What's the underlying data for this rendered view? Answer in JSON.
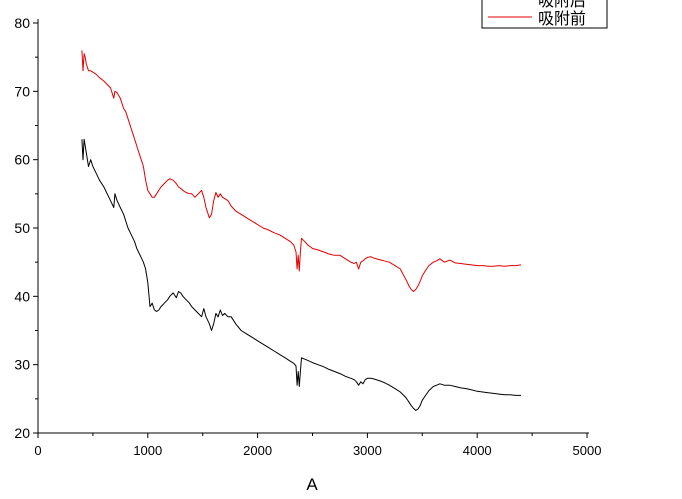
{
  "chart_data": {
    "type": "line",
    "title": "",
    "xlabel": "A",
    "ylabel": "",
    "xlim": [
      0,
      5000
    ],
    "ylim": [
      20,
      80
    ],
    "x_ticks": [
      "0",
      "1000",
      "2000",
      "3000",
      "4000",
      "5000"
    ],
    "y_ticks": [
      "20",
      "30",
      "40",
      "50",
      "60",
      "70",
      "80"
    ],
    "grid": false,
    "legend": {
      "position": "top-right",
      "entries": [
        "吸附后",
        "吸附前"
      ]
    },
    "series": [
      {
        "name": "吸附后",
        "color": "#000000",
        "x": [
          400,
          410,
          420,
          430,
          440,
          460,
          480,
          500,
          530,
          560,
          600,
          630,
          660,
          690,
          700,
          720,
          750,
          780,
          800,
          820,
          850,
          880,
          900,
          930,
          960,
          980,
          1000,
          1020,
          1040,
          1060,
          1080,
          1100,
          1120,
          1150,
          1180,
          1200,
          1230,
          1260,
          1280,
          1300,
          1320,
          1350,
          1380,
          1400,
          1430,
          1460,
          1490,
          1510,
          1530,
          1560,
          1580,
          1600,
          1620,
          1640,
          1660,
          1680,
          1700,
          1730,
          1760,
          1800,
          1850,
          1900,
          1950,
          2000,
          2050,
          2100,
          2150,
          2200,
          2250,
          2300,
          2330,
          2350,
          2360,
          2370,
          2380,
          2390,
          2400,
          2430,
          2460,
          2500,
          2550,
          2600,
          2650,
          2700,
          2750,
          2800,
          2850,
          2880,
          2900,
          2920,
          2940,
          2960,
          2980,
          3000,
          3030,
          3060,
          3100,
          3150,
          3200,
          3250,
          3300,
          3350,
          3380,
          3400,
          3420,
          3440,
          3460,
          3480,
          3500,
          3530,
          3560,
          3600,
          3630,
          3660,
          3700,
          3750,
          3800,
          3850,
          3900,
          3950,
          4000,
          4050,
          4100,
          4150,
          4200,
          4250,
          4300,
          4350,
          4400
        ],
        "y": [
          63,
          60,
          63,
          62,
          61,
          59,
          60,
          59,
          58,
          57,
          56,
          55,
          54,
          53,
          55,
          54,
          53,
          52,
          51,
          50,
          49,
          48,
          47,
          46,
          45,
          44,
          42,
          38.5,
          39,
          38,
          37.8,
          38,
          38.5,
          39,
          39.5,
          40,
          40.5,
          39.8,
          40.7,
          40.5,
          40,
          39.5,
          39,
          38.5,
          38,
          37.5,
          37,
          38.2,
          37,
          36,
          35,
          36,
          37.5,
          37,
          38,
          37.2,
          37.5,
          37,
          37,
          36,
          35,
          34.5,
          34,
          33.5,
          33,
          32.5,
          32,
          31.5,
          31,
          30.5,
          30.2,
          29.8,
          27,
          29,
          26.8,
          29,
          31,
          30.8,
          30.6,
          30.3,
          30,
          29.7,
          29.3,
          29,
          28.7,
          28.3,
          28,
          27.8,
          27.5,
          27,
          27.5,
          27.2,
          27.8,
          28,
          28,
          27.9,
          27.7,
          27.4,
          27,
          26.5,
          26,
          25.2,
          24.5,
          24,
          23.6,
          23.3,
          23.5,
          24,
          24.8,
          25.5,
          26.2,
          26.8,
          27,
          27.2,
          27,
          27,
          26.8,
          26.6,
          26.5,
          26.3,
          26.1,
          26,
          25.9,
          25.8,
          25.7,
          25.6,
          25.6,
          25.5,
          25.5
        ]
      },
      {
        "name": "吸附前",
        "color": "#e00000",
        "x": [
          400,
          410,
          420,
          430,
          440,
          460,
          480,
          500,
          530,
          560,
          600,
          630,
          660,
          690,
          700,
          720,
          750,
          780,
          800,
          820,
          850,
          880,
          900,
          930,
          960,
          980,
          1000,
          1020,
          1040,
          1060,
          1080,
          1100,
          1120,
          1150,
          1180,
          1200,
          1230,
          1260,
          1280,
          1300,
          1320,
          1350,
          1380,
          1400,
          1430,
          1460,
          1490,
          1510,
          1530,
          1560,
          1580,
          1600,
          1620,
          1640,
          1660,
          1680,
          1700,
          1730,
          1760,
          1800,
          1850,
          1900,
          1950,
          2000,
          2050,
          2100,
          2150,
          2200,
          2250,
          2300,
          2330,
          2350,
          2360,
          2370,
          2380,
          2390,
          2400,
          2430,
          2460,
          2500,
          2550,
          2600,
          2650,
          2700,
          2750,
          2800,
          2850,
          2880,
          2900,
          2920,
          2940,
          2960,
          2980,
          3000,
          3030,
          3060,
          3100,
          3150,
          3200,
          3250,
          3300,
          3350,
          3380,
          3400,
          3420,
          3440,
          3460,
          3480,
          3500,
          3530,
          3560,
          3600,
          3630,
          3660,
          3700,
          3750,
          3800,
          3850,
          3900,
          3950,
          4000,
          4050,
          4100,
          4150,
          4200,
          4250,
          4300,
          4350,
          4400
        ],
        "y": [
          76,
          73,
          75.5,
          75,
          74,
          73,
          73,
          72.8,
          72.5,
          72,
          71.5,
          71,
          70.5,
          69,
          70,
          69.8,
          69,
          67.5,
          67,
          66,
          64.5,
          63,
          62,
          60.5,
          59,
          57,
          55.5,
          55,
          54.5,
          54.5,
          55,
          55.5,
          56,
          56.5,
          57,
          57.2,
          57,
          56.5,
          56,
          55.8,
          55.5,
          55.2,
          55,
          55,
          54.5,
          55,
          55.5,
          54.5,
          53,
          51.5,
          52,
          54,
          55.2,
          54.5,
          55,
          54.5,
          54.3,
          54,
          53.2,
          52.5,
          52,
          51.5,
          51,
          50.5,
          50,
          49.7,
          49.3,
          49,
          48.5,
          48,
          47.5,
          46.5,
          44,
          46,
          43.7,
          46.5,
          48.5,
          48,
          47.5,
          47,
          46.8,
          46.5,
          46.2,
          46,
          46,
          45.5,
          45,
          44.8,
          45,
          44,
          45,
          45.2,
          45.5,
          45.7,
          45.8,
          45.6,
          45.4,
          45.2,
          45,
          44.5,
          44,
          42.5,
          41.5,
          41,
          40.7,
          41,
          41.5,
          42.2,
          43,
          43.8,
          44.5,
          45,
          45.2,
          45.5,
          45,
          45.3,
          44.9,
          44.8,
          44.7,
          44.6,
          44.5,
          44.5,
          44.4,
          44.4,
          44.5,
          44.4,
          44.5,
          44.5,
          44.6
        ]
      }
    ]
  }
}
